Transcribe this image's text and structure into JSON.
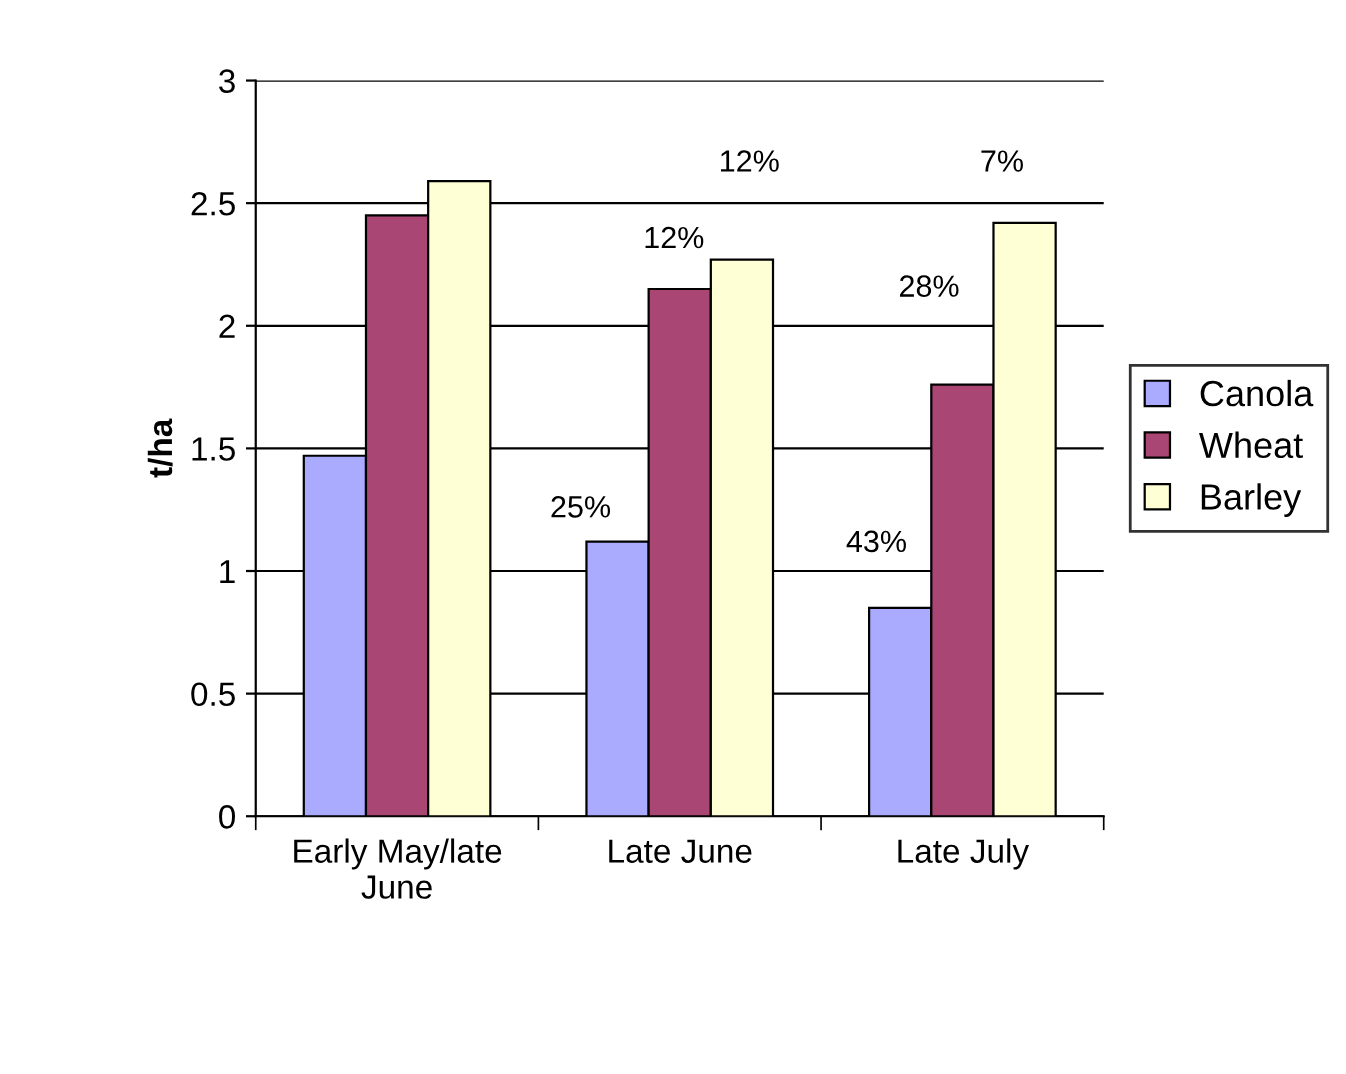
{
  "chart_data": {
    "type": "bar",
    "ylabel": "t/ha",
    "categories": [
      "Early May/late June",
      "Late June",
      "Late July"
    ],
    "series": [
      {
        "name": "Canola",
        "color": "#aaaaff",
        "values": [
          1.47,
          1.12,
          0.85
        ]
      },
      {
        "name": "Wheat",
        "color": "#a94673",
        "values": [
          2.45,
          2.15,
          1.76
        ]
      },
      {
        "name": "Barley",
        "color": "#ffffd5",
        "values": [
          2.59,
          2.27,
          2.42
        ]
      }
    ],
    "annotations": [
      "25%",
      "12%",
      "12%",
      "43%",
      "28%",
      "7%"
    ],
    "ylim": [
      0,
      3
    ],
    "yticks": [
      0,
      0.5,
      1,
      1.5,
      2,
      2.5,
      3
    ],
    "grid": "y",
    "legend": "right"
  }
}
